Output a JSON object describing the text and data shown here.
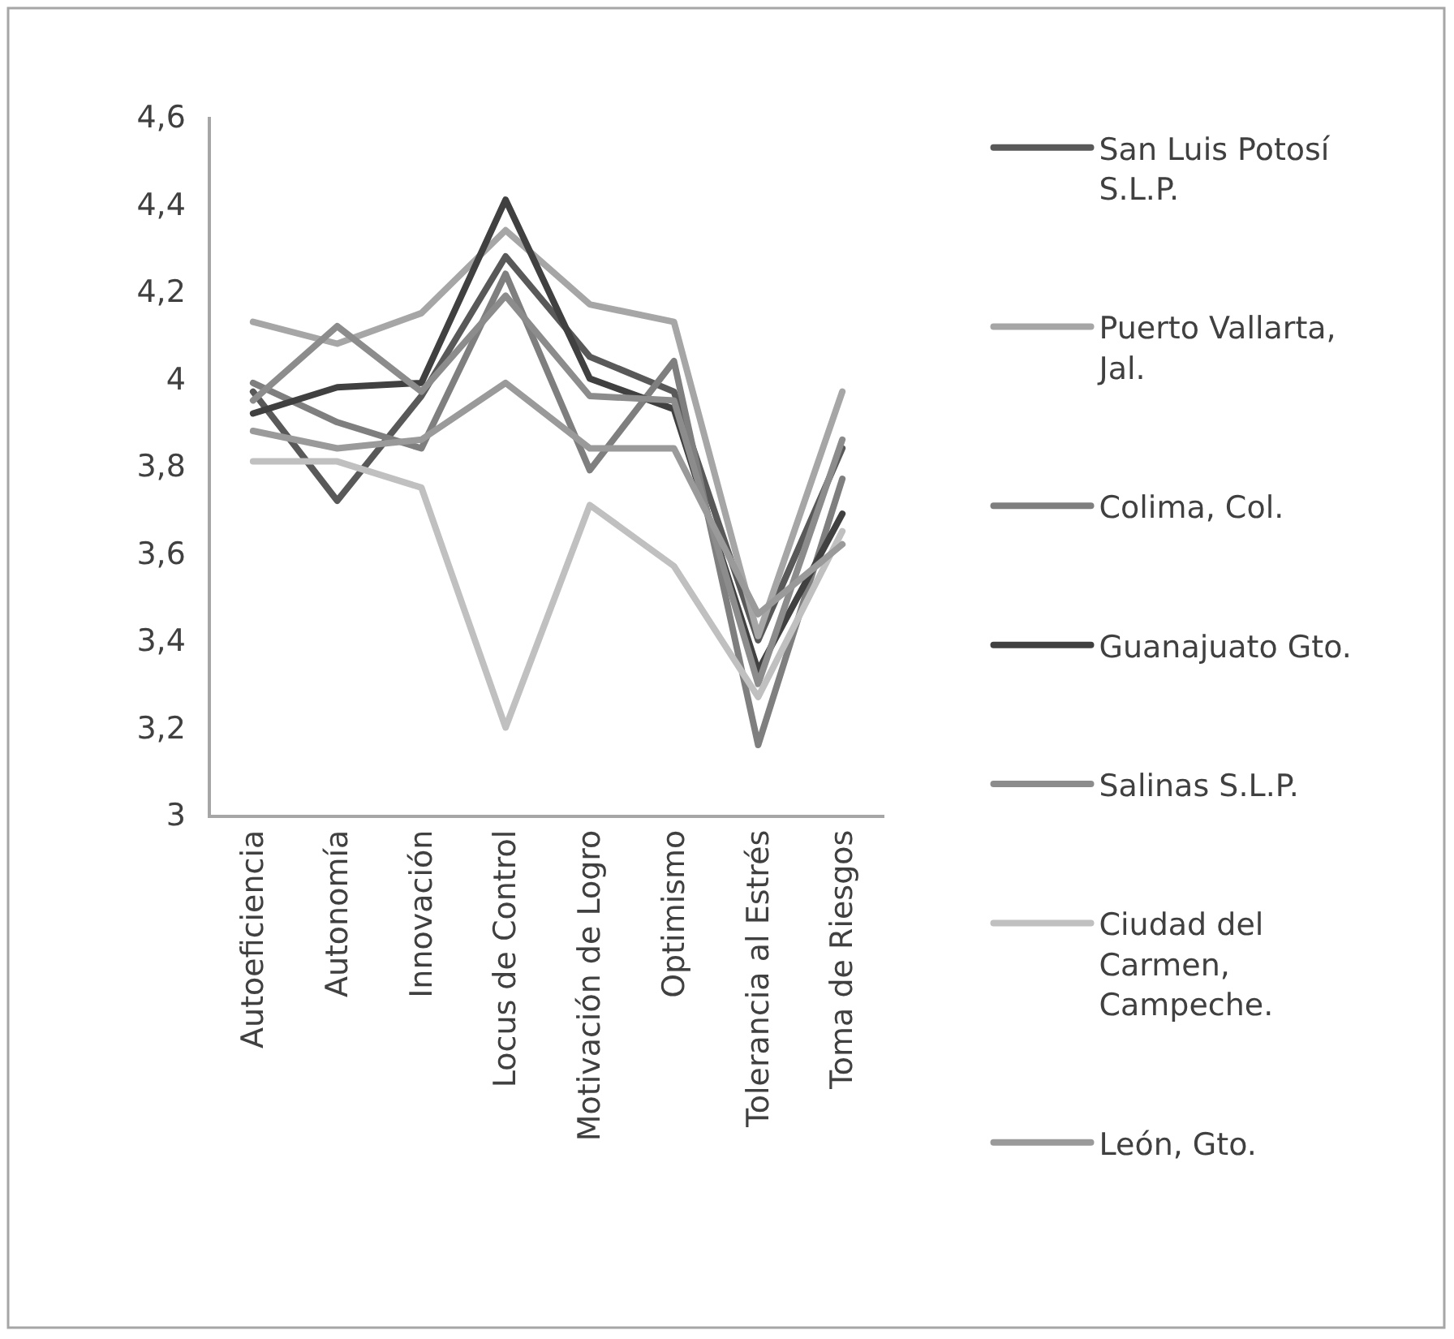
{
  "chart_data": {
    "type": "line",
    "categories": [
      "Autoeficiencia",
      "Autonomía",
      "Innovación",
      "Locus de Control",
      "Motivación de Logro",
      "Optimismo",
      "Tolerancia al Estrés",
      "Toma de Riesgos"
    ],
    "series": [
      {
        "name": "San Luis Potosí S.L.P.",
        "color": "#595959",
        "values": [
          3.97,
          3.72,
          3.96,
          4.28,
          4.05,
          3.97,
          3.4,
          3.84
        ]
      },
      {
        "name": "Puerto Vallarta, Jal.",
        "color": "#a6a6a6",
        "values": [
          4.13,
          4.08,
          4.15,
          4.34,
          4.17,
          4.13,
          3.41,
          3.97
        ]
      },
      {
        "name": "Colima, Col.",
        "color": "#7f7f7f",
        "values": [
          3.99,
          3.9,
          3.84,
          4.24,
          3.79,
          4.04,
          3.16,
          3.77
        ]
      },
      {
        "name": "Guanajuato Gto.",
        "color": "#404040",
        "values": [
          3.92,
          3.98,
          3.99,
          4.41,
          4.0,
          3.93,
          3.33,
          3.69
        ]
      },
      {
        "name": "Salinas S.L.P.",
        "color": "#8c8c8c",
        "values": [
          3.95,
          4.12,
          3.97,
          4.19,
          3.96,
          3.95,
          3.3,
          3.86
        ]
      },
      {
        "name": "Ciudad del Carmen, Campeche.",
        "color": "#c0c0c0",
        "values": [
          3.81,
          3.81,
          3.75,
          3.2,
          3.71,
          3.57,
          3.27,
          3.65
        ]
      },
      {
        "name": "León, Gto.",
        "color": "#9a9a9a",
        "values": [
          3.88,
          3.84,
          3.86,
          3.99,
          3.84,
          3.84,
          3.46,
          3.62
        ]
      }
    ],
    "ylim": [
      3,
      4.6
    ],
    "yticks": [
      3,
      {
        "value": 3.2,
        "label": "3,2"
      },
      {
        "value": 3.4,
        "label": "3,4"
      },
      {
        "value": 3.6,
        "label": "3,6"
      },
      {
        "value": 3.8,
        "label": "3,8"
      },
      4,
      {
        "value": 4.2,
        "label": "4,2"
      },
      {
        "value": 4.4,
        "label": "4,4"
      },
      {
        "value": 4.6,
        "label": "4,6"
      }
    ],
    "grid": false,
    "legend": "right"
  }
}
